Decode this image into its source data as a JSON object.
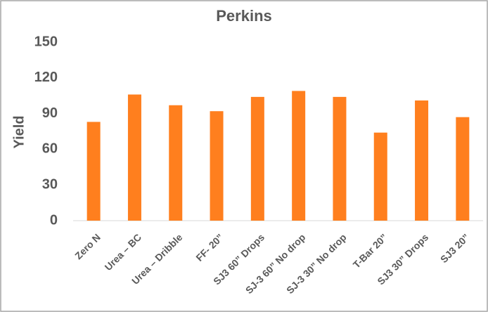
{
  "chart_data": {
    "type": "bar",
    "title": "Perkins",
    "y_label": "Yield",
    "categories": [
      "Zero N",
      "Urea – BC",
      "Urea – Dribble",
      "FF- 20”",
      "SJ3 60” Drops",
      "SJ-3 60” No drop",
      "SJ-3 30” No drop",
      "T-Bar 20”",
      "SJ3 30” Drops",
      "SJ3 20”"
    ],
    "values": [
      83,
      106,
      97,
      92,
      104,
      109,
      104,
      74,
      101,
      87
    ],
    "color": "#ff7f1e",
    "ylim": [
      0,
      150
    ],
    "yticks": [
      0,
      30,
      60,
      90,
      120,
      150
    ],
    "grid": false
  }
}
